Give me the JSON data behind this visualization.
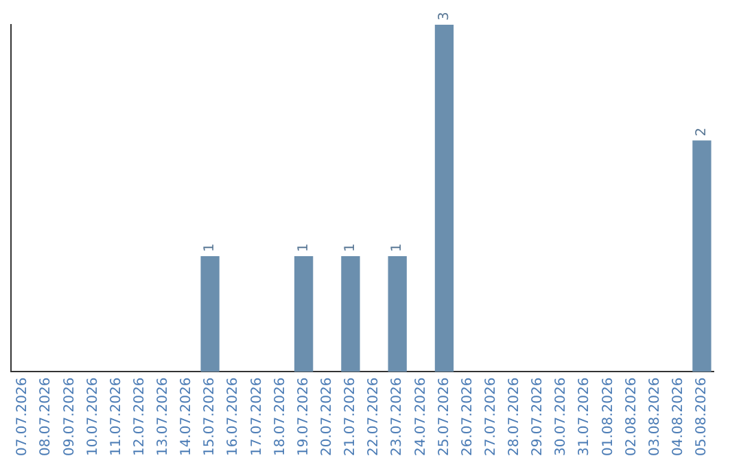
{
  "chart_data": {
    "type": "bar",
    "categories": [
      "07.07.2026",
      "08.07.2026",
      "09.07.2026",
      "10.07.2026",
      "11.07.2026",
      "12.07.2026",
      "13.07.2026",
      "14.07.2026",
      "15.07.2026",
      "16.07.2026",
      "17.07.2026",
      "18.07.2026",
      "19.07.2026",
      "20.07.2026",
      "21.07.2026",
      "22.07.2026",
      "23.07.2026",
      "24.07.2026",
      "25.07.2026",
      "26.07.2026",
      "27.07.2026",
      "28.07.2026",
      "29.07.2026",
      "30.07.2026",
      "31.07.2026",
      "01.08.2026",
      "02.08.2026",
      "03.08.2026",
      "04.08.2026",
      "05.08.2026"
    ],
    "values": [
      0,
      0,
      0,
      0,
      0,
      0,
      0,
      0,
      1,
      0,
      0,
      0,
      1,
      0,
      1,
      0,
      1,
      0,
      3,
      0,
      0,
      0,
      0,
      0,
      0,
      0,
      0,
      0,
      0,
      2
    ],
    "value_labels": [
      null,
      null,
      null,
      null,
      null,
      null,
      null,
      null,
      "1",
      null,
      null,
      null,
      "1",
      null,
      "1",
      null,
      "1",
      null,
      "3",
      null,
      null,
      null,
      null,
      null,
      null,
      null,
      null,
      null,
      null,
      "2"
    ],
    "color": "#6b8fae",
    "grid": false,
    "legend": false,
    "tick_labels": "x"
  }
}
